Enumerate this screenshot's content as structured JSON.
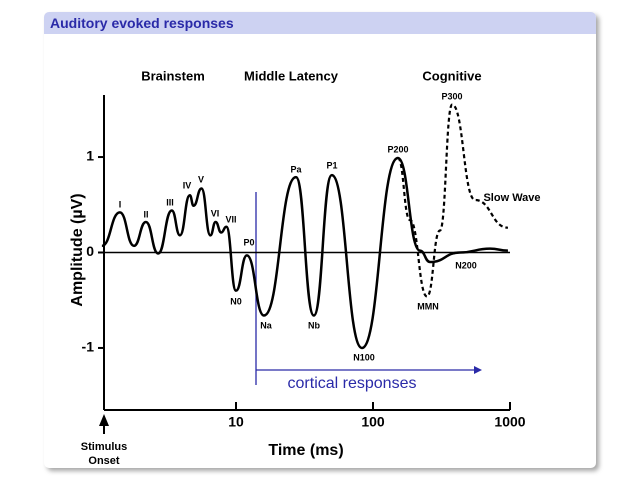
{
  "header": {
    "title": "Auditory evoked responses"
  },
  "chart_data": {
    "type": "line",
    "xlabel": "Time (ms)",
    "ylabel": "Amplitude (µV)",
    "xlog": true,
    "xlim": [
      1,
      1000
    ],
    "xticks": [
      10,
      100,
      1000
    ],
    "ylim": [
      -1.65,
      1.65
    ],
    "yticks": [
      -1,
      0,
      1
    ],
    "series": [
      {
        "color": "#000000",
        "dash": false,
        "x": [
          1.05,
          1.42,
          1.8,
          2.2,
          2.7,
          3.4,
          3.9,
          4.6,
          4.9,
          5.6,
          6.5,
          7.1,
          7.8,
          8.5,
          10,
          12,
          16,
          27.4,
          37,
          50,
          83,
          152,
          220,
          261,
          432,
          715,
          966
        ],
        "values": [
          0.07,
          0.42,
          0.07,
          0.32,
          -0.01,
          0.44,
          0.18,
          0.6,
          0.49,
          0.67,
          0.18,
          0.32,
          0.21,
          0.27,
          -0.4,
          -0.03,
          -0.66,
          0.79,
          -0.66,
          0.81,
          -1.0,
          0.99,
          0.02,
          -0.1,
          0,
          0.04,
          0.02
        ]
      },
      {
        "color": "#000000",
        "dash": true,
        "x": [
          152,
          186,
          248,
          308,
          378,
          556,
          966
        ],
        "values": [
          0.99,
          0.34,
          -0.46,
          0.23,
          1.55,
          0.55,
          0.26
        ]
      }
    ],
    "annotations": [
      "I",
      "II",
      "III",
      "IV",
      "V",
      "VI",
      "VII",
      "N0",
      "P0",
      "Na",
      "Pa",
      "Nb",
      "P1",
      "N100",
      "P200",
      "MMN",
      "N200",
      "P300",
      "Slow Wave"
    ],
    "sections": [
      "Brainstem",
      "Middle Latency",
      "Cognitive"
    ],
    "onset_label": [
      "Stimulus",
      "Onset"
    ],
    "range_label": "cortical responses"
  }
}
